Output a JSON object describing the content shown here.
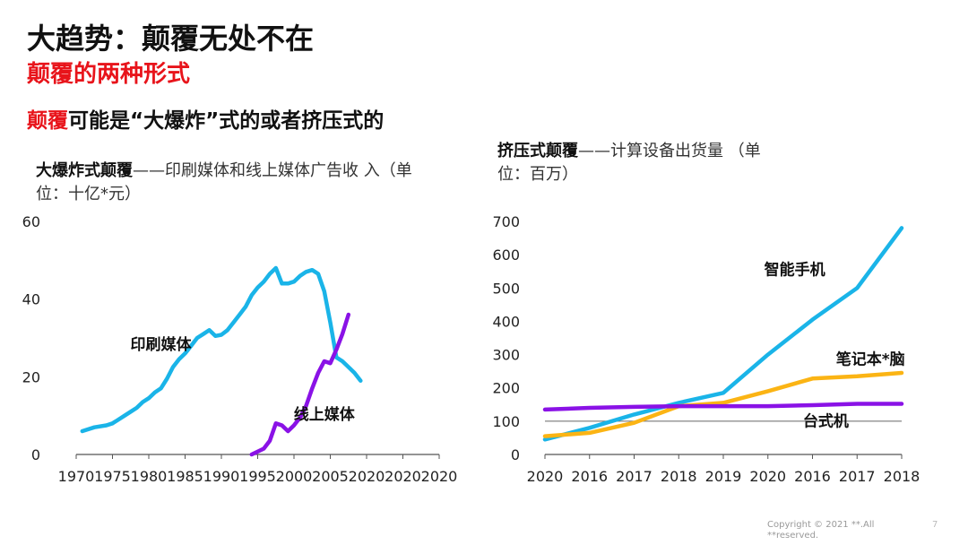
{
  "header": {
    "title": "大趋势：颠覆无处不在",
    "subtitle": "颠覆的两种形式",
    "headline_highlight": "颠覆",
    "headline_rest": "可能是“大爆炸”式的或者挤压式的"
  },
  "left_chart_title": {
    "bold": "大爆炸式颠覆",
    "rest": "——印刷媒体和线上媒体广告收 入（单位：十亿*元）"
  },
  "right_chart_title": {
    "bold": "挤压式颠覆",
    "rest": "——计算设备出货量 （单位：百万）"
  },
  "footer": {
    "copyright": "Copyright © 2021 **.All **reserved.",
    "page": "7"
  },
  "colors": {
    "cyan": "#1ab4e8",
    "purple": "#8a12e6",
    "orange": "#fbb414",
    "red": "#e8141b",
    "axis": "#555555"
  },
  "chart_data": [
    {
      "type": "line",
      "xlim": [
        1970,
        2030
      ],
      "ylim": [
        0,
        60
      ],
      "x_tick_labels": [
        "1970",
        "1975",
        "1980",
        "1985",
        "1990",
        "1995",
        "2000",
        "2005",
        "2020",
        "2020",
        "2020"
      ],
      "y_tick_labels": [
        "0",
        "20",
        "40",
        "60"
      ],
      "y_ticks": [
        0,
        20,
        40,
        60
      ],
      "series": [
        {
          "name": "印刷媒体",
          "color": "#1ab4e8",
          "points": [
            [
              1971,
              6
            ],
            [
              1973,
              7
            ],
            [
              1975,
              7.5
            ],
            [
              1976,
              8
            ],
            [
              1977,
              9
            ],
            [
              1978,
              10
            ],
            [
              1979,
              11
            ],
            [
              1980,
              12
            ],
            [
              1981,
              13.5
            ],
            [
              1982,
              14.5
            ],
            [
              1983,
              16
            ],
            [
              1984,
              17
            ],
            [
              1985,
              19.5
            ],
            [
              1986,
              22.5
            ],
            [
              1987,
              24.5
            ],
            [
              1988,
              26
            ],
            [
              1989,
              28
            ],
            [
              1990,
              30
            ],
            [
              1991,
              31
            ],
            [
              1992,
              32
            ],
            [
              1993,
              30.5
            ],
            [
              1994,
              30.8
            ],
            [
              1995,
              32
            ],
            [
              1996,
              34
            ],
            [
              1997,
              36
            ],
            [
              1998,
              38
            ],
            [
              1999,
              41
            ],
            [
              2000,
              43
            ],
            [
              2001,
              44.5
            ],
            [
              2002,
              46.5
            ],
            [
              2003,
              48
            ],
            [
              2004,
              44
            ],
            [
              2005,
              44
            ],
            [
              2006,
              44.5
            ],
            [
              2007,
              46
            ],
            [
              2008,
              47
            ],
            [
              2009,
              47.5
            ],
            [
              2010,
              46.5
            ],
            [
              2011,
              42
            ],
            [
              2012,
              34
            ],
            [
              2013,
              25
            ],
            [
              2014,
              24
            ],
            [
              2015,
              22.5
            ],
            [
              2016,
              21
            ],
            [
              2017,
              19
            ]
          ]
        },
        {
          "name": "线上媒体",
          "color": "#8a12e6",
          "points": [
            [
              1999,
              0
            ],
            [
              2001,
              1.5
            ],
            [
              2002,
              3.5
            ],
            [
              2003,
              8
            ],
            [
              2004,
              7.5
            ],
            [
              2005,
              6
            ],
            [
              2006,
              7.5
            ],
            [
              2007,
              9.5
            ],
            [
              2008,
              12.5
            ],
            [
              2009,
              17
            ],
            [
              2010,
              21
            ],
            [
              2011,
              24
            ],
            [
              2012,
              23.5
            ],
            [
              2013,
              27
            ],
            [
              2014,
              31
            ],
            [
              2015,
              36
            ]
          ]
        }
      ],
      "labels": [
        {
          "text": "印刷媒体",
          "x": 1984,
          "y": 27
        },
        {
          "text": "线上媒体",
          "x": 2011,
          "y": 9
        }
      ]
    },
    {
      "type": "line",
      "categories": [
        "2020",
        "2016",
        "2017",
        "2018",
        "2019",
        "2020",
        "2016",
        "2017",
        "2018"
      ],
      "ylim": [
        0,
        700
      ],
      "y_ticks": [
        0,
        100,
        200,
        300,
        400,
        500,
        600,
        700
      ],
      "y_tick_labels": [
        "0",
        "100",
        "200",
        "300",
        "400",
        "500",
        "600",
        "700"
      ],
      "reference_line": 100,
      "series": [
        {
          "name": "智能手机",
          "color": "#1ab4e8",
          "values": [
            45,
            80,
            120,
            155,
            185,
            300,
            405,
            500,
            680
          ]
        },
        {
          "name": "笔记本*脑",
          "color": "#fbb414",
          "values": [
            55,
            65,
            95,
            145,
            155,
            190,
            228,
            235,
            245
          ]
        },
        {
          "name": "台式机",
          "color": "#8a12e6",
          "values": [
            135,
            140,
            143,
            145,
            145,
            145,
            148,
            152,
            152
          ]
        }
      ],
      "labels": [
        {
          "text": "智能手机",
          "x": 5.6,
          "y": 540
        },
        {
          "text": "笔记本*脑",
          "x": 7.3,
          "y": 270
        },
        {
          "text": "台式机",
          "x": 6.3,
          "y": 85
        }
      ]
    }
  ]
}
